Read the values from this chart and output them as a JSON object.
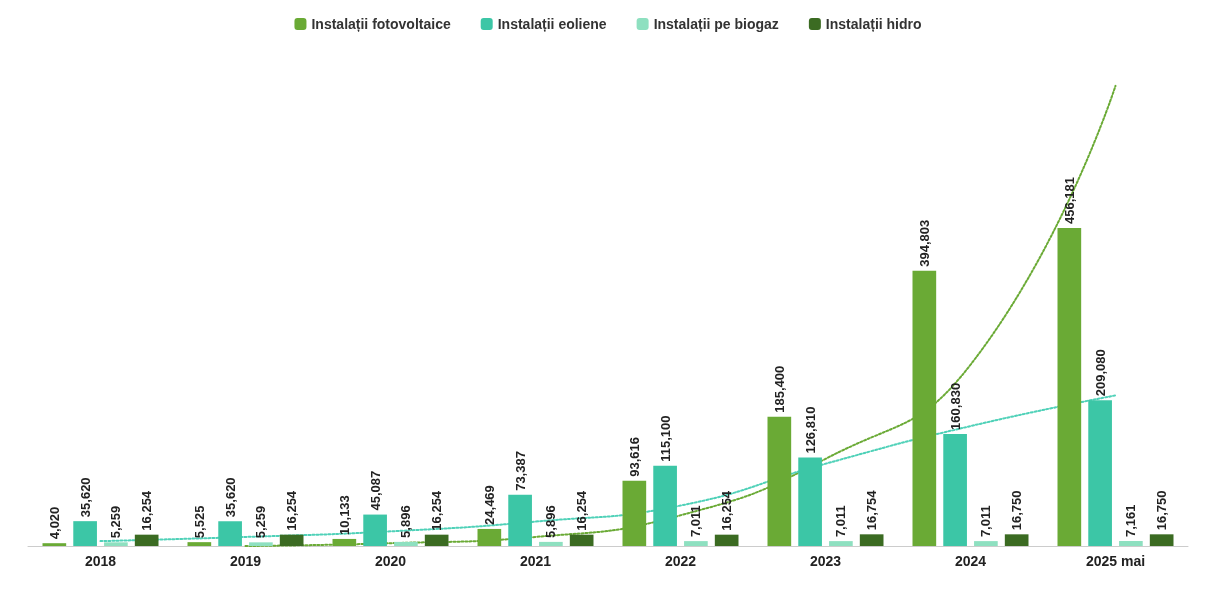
{
  "chart_data": {
    "type": "bar",
    "categories": [
      "2018",
      "2019",
      "2020",
      "2021",
      "2022",
      "2023",
      "2024",
      "2025 mai"
    ],
    "series": [
      {
        "name": "Instalații fotovoltaice",
        "color": "#6aaa35",
        "values": [
          4020,
          5525,
          10133,
          24469,
          93616,
          185400,
          394803,
          456181
        ],
        "value_labels": [
          "4,020",
          "5,525",
          "10,133",
          "24,469",
          "93,616",
          "185,400",
          "394,803",
          "456,181"
        ]
      },
      {
        "name": "Instalații eoliene",
        "color": "#3cc6a6",
        "values": [
          35620,
          35620,
          45087,
          73387,
          115100,
          126810,
          160830,
          209080
        ],
        "value_labels": [
          "35,620",
          "35,620",
          "45,087",
          "73,387",
          "115,100",
          "126,810",
          "160,830",
          "209,080"
        ]
      },
      {
        "name": "Instalații pe biogaz",
        "color": "#8ee0c0",
        "values": [
          5259,
          5259,
          5896,
          5896,
          7011,
          7011,
          7011,
          7161
        ],
        "value_labels": [
          "5,259",
          "5,259",
          "5,896",
          "5,896",
          "7,011",
          "7,011",
          "7,011",
          "7,161"
        ]
      },
      {
        "name": "Instalații hidro",
        "color": "#3b6b22",
        "values": [
          16254,
          16254,
          16254,
          16254,
          16254,
          16754,
          16750,
          16750
        ],
        "value_labels": [
          "16,254",
          "16,254",
          "16,254",
          "16,254",
          "16,254",
          "16,754",
          "16,750",
          "16,750"
        ]
      },
      {
        "type": "line",
        "color": "#6aaa35",
        "line_style": "dotted",
        "values": [
          null,
          0,
          4000,
          13000,
          44000,
          125000,
          260000,
          660000
        ]
      },
      {
        "type": "line",
        "color": "#4fd1b8",
        "line_style": "dotted",
        "values": [
          7000,
          13000,
          21000,
          35000,
          58000,
          118000,
          172000,
          216000
        ]
      }
    ],
    "legend": "top",
    "grid": false
  }
}
